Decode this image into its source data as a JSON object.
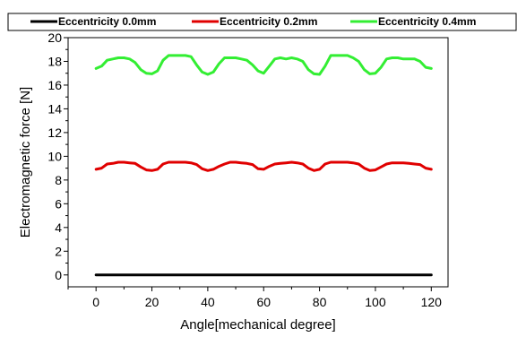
{
  "chart_data": {
    "type": "line",
    "xlabel": "Angle[mechanical degree]",
    "ylabel": "Electromagnetic force [N]",
    "xlim": [
      -10,
      126
    ],
    "ylim": [
      -1,
      20
    ],
    "xticks": [
      0,
      20,
      40,
      60,
      80,
      100,
      120
    ],
    "yticks": [
      0,
      2,
      4,
      6,
      8,
      10,
      12,
      14,
      16,
      18,
      20
    ],
    "grid": false,
    "legend_position": "top",
    "series": [
      {
        "name": "Eccentricity 0.0mm",
        "color": "#000000",
        "x": [
          0,
          120
        ],
        "values": [
          0,
          0
        ]
      },
      {
        "name": "Eccentricity 0.2mm",
        "color": "#e00000",
        "x": [
          0,
          2,
          4,
          6,
          8,
          10,
          12,
          14,
          16,
          18,
          20,
          22,
          24,
          26,
          28,
          30,
          32,
          34,
          36,
          38,
          40,
          42,
          44,
          46,
          48,
          50,
          52,
          54,
          56,
          58,
          60,
          62,
          64,
          66,
          68,
          70,
          72,
          74,
          76,
          78,
          80,
          82,
          84,
          86,
          88,
          90,
          92,
          94,
          96,
          98,
          100,
          102,
          104,
          106,
          108,
          110,
          112,
          114,
          116,
          118,
          120
        ],
        "values": [
          8.9,
          9.0,
          9.35,
          9.4,
          9.5,
          9.5,
          9.45,
          9.4,
          9.1,
          8.85,
          8.8,
          8.9,
          9.35,
          9.5,
          9.5,
          9.5,
          9.5,
          9.45,
          9.3,
          8.95,
          8.8,
          8.9,
          9.15,
          9.35,
          9.5,
          9.5,
          9.45,
          9.4,
          9.3,
          8.95,
          8.9,
          9.15,
          9.35,
          9.4,
          9.45,
          9.5,
          9.45,
          9.35,
          9.0,
          8.8,
          8.9,
          9.35,
          9.5,
          9.5,
          9.5,
          9.5,
          9.45,
          9.35,
          9.0,
          8.8,
          8.85,
          9.1,
          9.35,
          9.45,
          9.45,
          9.45,
          9.4,
          9.35,
          9.3,
          9.0,
          8.9
        ]
      },
      {
        "name": "Eccentricity 0.4mm",
        "color": "#33ee33",
        "x": [
          0,
          2,
          4,
          6,
          8,
          10,
          12,
          14,
          16,
          18,
          20,
          22,
          24,
          26,
          28,
          30,
          32,
          34,
          36,
          38,
          40,
          42,
          44,
          46,
          48,
          50,
          52,
          54,
          56,
          58,
          60,
          62,
          64,
          66,
          68,
          70,
          72,
          74,
          76,
          78,
          80,
          82,
          84,
          86,
          88,
          90,
          92,
          94,
          96,
          98,
          100,
          102,
          104,
          106,
          108,
          110,
          112,
          114,
          116,
          118,
          120
        ],
        "values": [
          17.4,
          17.6,
          18.1,
          18.2,
          18.3,
          18.3,
          18.2,
          17.9,
          17.3,
          17.0,
          16.95,
          17.2,
          18.1,
          18.5,
          18.5,
          18.5,
          18.5,
          18.4,
          17.7,
          17.1,
          16.9,
          17.1,
          17.8,
          18.3,
          18.3,
          18.3,
          18.2,
          18.1,
          17.7,
          17.2,
          17.0,
          17.6,
          18.2,
          18.3,
          18.2,
          18.3,
          18.2,
          18.0,
          17.3,
          16.95,
          16.9,
          17.6,
          18.5,
          18.5,
          18.5,
          18.5,
          18.3,
          18.0,
          17.3,
          16.95,
          17.0,
          17.5,
          18.2,
          18.3,
          18.3,
          18.2,
          18.2,
          18.2,
          18.0,
          17.5,
          17.4
        ]
      }
    ]
  }
}
